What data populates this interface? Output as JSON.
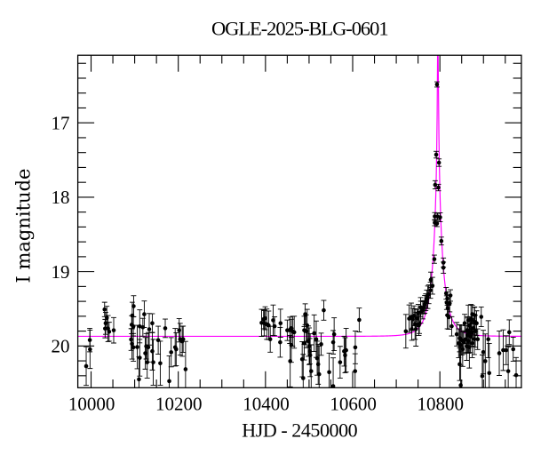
{
  "page": {
    "background": "#ffffff"
  },
  "chart_data": {
    "type": "scatter",
    "title": "OGLE-2025-BLG-0601",
    "xlabel": "HJD - 2450000",
    "ylabel": "I magnitude",
    "x_range": [
      9969.6,
      10986.9
    ],
    "y_range": [
      20.561,
      16.092
    ],
    "y_axis_inverted": true,
    "grid": false,
    "legend": null,
    "x_major_ticks": [
      10000,
      10200,
      10400,
      10600,
      10800
    ],
    "x_major_tick_labels": [
      "10000",
      "10200",
      "10400",
      "10600",
      "10800"
    ],
    "x_minor_tick_step": 50,
    "y_major_ticks": [
      17,
      18,
      19,
      20
    ],
    "y_major_tick_labels": [
      "17",
      "18",
      "19",
      "20"
    ],
    "y_minor_tick_step": 0.2,
    "series": [
      {
        "name": "OGLE I-band photometry",
        "kind": "errorbar-scatter",
        "marker": "filled-circle",
        "color": "#000000",
        "points_format": [
          "hjd_minus_2450000",
          "i_magnitude",
          "magnitude_error"
        ],
        "points": [
          [
            9988.8,
            20.27,
            0.26
          ],
          [
            9997.1,
            19.92,
            0.158
          ],
          [
            9997.6,
            20.045,
            0.257
          ],
          [
            10031.0,
            19.509,
            0.097
          ],
          [
            10032.2,
            19.766,
            0.124
          ],
          [
            10033.4,
            19.695,
            0.148
          ],
          [
            10036.1,
            19.621,
            0.154
          ],
          [
            10038.9,
            19.766,
            0.175
          ],
          [
            10041.4,
            19.808,
            0.127
          ],
          [
            10051.9,
            19.789,
            0.171
          ],
          [
            10091.9,
            19.913,
            0.146
          ],
          [
            10093.1,
            19.714,
            0.121
          ],
          [
            10093.9,
            19.971,
            0.205
          ],
          [
            10094.5,
            19.59,
            0.178
          ],
          [
            10097.0,
            19.737,
            0.128
          ],
          [
            10097.0,
            20.018,
            0.186
          ],
          [
            10097.6,
            19.465,
            0.141
          ],
          [
            10105.9,
            20.014,
            0.292
          ],
          [
            10109.8,
            20.448,
            0.3
          ],
          [
            10111.6,
            20.158,
            0.246
          ],
          [
            10111.6,
            19.736,
            0.222
          ],
          [
            10118.8,
            19.748,
            0.12
          ],
          [
            10122.0,
            19.573,
            0.178
          ],
          [
            10124.3,
            20.098,
            0.213
          ],
          [
            10126.5,
            20.004,
            0.171
          ],
          [
            10128.7,
            20.219,
            0.212
          ],
          [
            10131.2,
            20.017,
            0.198
          ],
          [
            10133.4,
            19.775,
            0.212
          ],
          [
            10140.4,
            19.694,
            0.128
          ],
          [
            10140.4,
            20.07,
            0.253
          ],
          [
            10142.6,
            20.219,
            0.308
          ],
          [
            10154.0,
            19.922,
            0.188
          ],
          [
            10158.7,
            20.232,
            0.296
          ],
          [
            10170.1,
            19.762,
            0.124
          ],
          [
            10179.3,
            20.473,
            0.34
          ],
          [
            10183.7,
            20.084,
            0.197
          ],
          [
            10192.9,
            20.017,
            0.253
          ],
          [
            10195.2,
            20.044,
            0.222
          ],
          [
            10202.1,
            19.789,
            0.157
          ],
          [
            10204.3,
            19.909,
            0.213
          ],
          [
            10209.0,
            19.937,
            0.202
          ],
          [
            10211.2,
            19.909,
            0.176
          ],
          [
            10216.7,
            20.312,
            0.374
          ],
          [
            10391.1,
            19.689,
            0.182
          ],
          [
            10395.6,
            19.64,
            0.128
          ],
          [
            10397.0,
            19.694,
            0.17
          ],
          [
            10399.3,
            19.627,
            0.154
          ],
          [
            10402.9,
            19.707,
            0.204
          ],
          [
            10407.2,
            19.722,
            0.192
          ],
          [
            10410.9,
            19.909,
            0.174
          ],
          [
            10417.6,
            19.654,
            0.205
          ],
          [
            10420.9,
            19.735,
            0.127
          ],
          [
            10433.7,
            19.95,
            0.2
          ],
          [
            10434.5,
            19.694,
            0.189
          ],
          [
            10450.0,
            19.789,
            0.138
          ],
          [
            10455.7,
            19.789,
            0.177
          ],
          [
            10456.7,
            20.204,
            0.346
          ],
          [
            10459.2,
            19.761,
            0.121
          ],
          [
            10459.2,
            19.989,
            0.23
          ],
          [
            10462.2,
            19.802,
            0.201
          ],
          [
            10465.9,
            19.815,
            0.215
          ],
          [
            10484.2,
            20.178,
            0.237
          ],
          [
            10486.5,
            20.432,
            0.32
          ],
          [
            10488.9,
            19.789,
            0.189
          ],
          [
            10488.9,
            19.963,
            0.225
          ],
          [
            10491.1,
            19.573,
            0.14
          ],
          [
            10493.4,
            19.802,
            0.221
          ],
          [
            10495.6,
            19.722,
            0.215
          ],
          [
            10498.1,
            19.935,
            0.204
          ],
          [
            10500.3,
            20.004,
            0.247
          ],
          [
            10501.7,
            20.07,
            0.171
          ],
          [
            10502.5,
            20.124,
            0.288
          ],
          [
            10504.8,
            20.338,
            0.354
          ],
          [
            10511.7,
            19.828,
            0.246
          ],
          [
            10516.4,
            19.909,
            0.245
          ],
          [
            10518.6,
            20.164,
            0.228
          ],
          [
            10520.9,
            20.245,
            0.269
          ],
          [
            10523.1,
            20.379,
            0.376
          ],
          [
            10527.8,
            19.976,
            0.149
          ],
          [
            10533.7,
            19.52,
            0.133
          ],
          [
            10546.1,
            20.352,
            0.257
          ],
          [
            10555.3,
            19.95,
            0.158
          ],
          [
            10555.3,
            20.54,
            0.38
          ],
          [
            10557.5,
            19.842,
            0.221
          ],
          [
            10571.2,
            20.219,
            0.214
          ],
          [
            10580.4,
            20.07,
            0.2
          ],
          [
            10582.6,
            20.124,
            0.236
          ],
          [
            10585.0,
            20.057,
            0.294
          ],
          [
            10605.6,
            20.338,
            0.234
          ],
          [
            10606.0,
            20.019,
            0.22
          ],
          [
            10615.0,
            19.65,
            0.16
          ],
          [
            10721.9,
            19.802,
            0.226
          ],
          [
            10729.5,
            19.632,
            0.184
          ],
          [
            10734.4,
            19.607,
            0.184
          ],
          [
            10735.6,
            19.774,
            0.15
          ],
          [
            10737.8,
            19.64,
            0.145
          ],
          [
            10740.7,
            19.594,
            0.133
          ],
          [
            10743.1,
            19.706,
            0.205
          ],
          [
            10745.0,
            19.774,
            0.228
          ],
          [
            10747.8,
            19.625,
            0.117
          ],
          [
            10750.5,
            19.552,
            0.111
          ],
          [
            10751.7,
            19.722,
            0.137
          ],
          [
            10752.9,
            19.698,
            0.134
          ],
          [
            10755.8,
            19.479,
            0.13
          ],
          [
            10756.2,
            19.546,
            0.148
          ],
          [
            10760.8,
            19.52,
            0.116
          ],
          [
            10763.1,
            19.479,
            0.089
          ],
          [
            10765.3,
            19.44,
            0.12
          ],
          [
            10767.6,
            19.412,
            0.113
          ],
          [
            10769.8,
            19.372,
            0.124
          ],
          [
            10772.3,
            19.345,
            0.151
          ],
          [
            10774.5,
            19.305,
            0.126
          ],
          [
            10778.4,
            19.251,
            0.108
          ],
          [
            10779.2,
            19.11,
            0.103
          ],
          [
            10783.1,
            19.19,
            0.113
          ],
          [
            10787.3,
            18.833,
            0.055
          ],
          [
            10788.3,
            18.258,
            0.051
          ],
          [
            10788.3,
            18.342,
            0.041
          ],
          [
            10789.2,
            17.833,
            0.055
          ],
          [
            10791.6,
            17.428,
            0.045
          ],
          [
            10793.4,
            16.484,
            0.035
          ],
          [
            10793.4,
            18.354,
            0.041
          ],
          [
            10794.5,
            18.258,
            0.041
          ],
          [
            10796.7,
            17.87,
            0.044
          ],
          [
            10797.9,
            17.535,
            0.05
          ],
          [
            10800.6,
            18.27,
            0.06
          ],
          [
            10803.4,
            18.589,
            0.053
          ],
          [
            10808.1,
            18.879,
            0.062
          ],
          [
            10808.1,
            18.947,
            0.075
          ],
          [
            10814.4,
            19.292,
            0.079
          ],
          [
            10815.6,
            19.417,
            0.092
          ],
          [
            10817.1,
            19.363,
            0.091
          ],
          [
            10817.1,
            19.587,
            0.182
          ],
          [
            10817.9,
            19.493,
            0.092
          ],
          [
            10820.3,
            19.614,
            0.161
          ],
          [
            10822.6,
            19.427,
            0.114
          ],
          [
            10824.2,
            19.321,
            0.077
          ],
          [
            10827.1,
            19.735,
            0.13
          ],
          [
            10838.7,
            19.842,
            0.158
          ],
          [
            10843.1,
            19.963,
            0.193
          ],
          [
            10845.4,
            19.896,
            0.182
          ],
          [
            10845.4,
            20.245,
            0.219
          ],
          [
            10847.8,
            19.989,
            0.27
          ],
          [
            10847.8,
            20.527,
            0.52
          ],
          [
            10850.1,
            19.922,
            0.2
          ],
          [
            10852.3,
            20.043,
            0.231
          ],
          [
            10854.6,
            19.95,
            0.154
          ],
          [
            10856.8,
            19.694,
            0.12
          ],
          [
            10859.2,
            19.909,
            0.181
          ],
          [
            10861.5,
            20.004,
            0.189
          ],
          [
            10862.9,
            19.787,
            0.181
          ],
          [
            10863.7,
            19.855,
            0.232
          ],
          [
            10865.1,
            19.654,
            0.204
          ],
          [
            10866.0,
            19.935,
            0.162
          ],
          [
            10867.6,
            20.016,
            0.28
          ],
          [
            10868.4,
            19.722,
            0.115
          ],
          [
            10869.8,
            19.869,
            0.219
          ],
          [
            10871.3,
            19.64,
            0.199
          ],
          [
            10872.9,
            19.815,
            0.187
          ],
          [
            10874.3,
            19.573,
            0.121
          ],
          [
            10874.3,
            19.962,
            0.195
          ],
          [
            10876.8,
            19.761,
            0.136
          ],
          [
            10879.0,
            19.667,
            0.186
          ],
          [
            10879.0,
            19.909,
            0.206
          ],
          [
            10879.8,
            19.587,
            0.112
          ],
          [
            10881.2,
            19.802,
            0.214
          ],
          [
            10884.3,
            19.694,
            0.167
          ],
          [
            10886.7,
            19.909,
            0.139
          ],
          [
            10894.9,
            19.608,
            0.132
          ],
          [
            10897.3,
            20.405,
            0.285
          ],
          [
            10899.6,
            20.082,
            0.293
          ],
          [
            10904.1,
            20.204,
            0.366
          ],
          [
            10911.0,
            19.909,
            0.249
          ],
          [
            10913.2,
            20.364,
            0.399
          ],
          [
            10936.2,
            20.097,
            0.299
          ],
          [
            10945.2,
            20.056,
            0.273
          ],
          [
            10952.1,
            20.056,
            0.194
          ],
          [
            10956.8,
            20.338,
            0.327
          ],
          [
            10959.1,
            19.815,
            0.166
          ],
          [
            10968.2,
            20.043,
            0.161
          ],
          [
            10974.9,
            20.392,
            0.237
          ]
        ]
      },
      {
        "name": "microlensing model",
        "kind": "line",
        "color": "#ff00ff",
        "model": {
          "type": "paczynski",
          "t0": 10795.5,
          "tE": 27.5,
          "u0": 0.01,
          "I0": 19.87
        }
      }
    ]
  }
}
